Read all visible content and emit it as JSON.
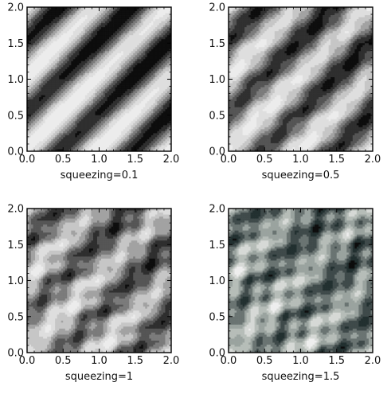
{
  "chart_data": [
    {
      "type": "heatmap",
      "title": "",
      "caption": "squeezing=0.1",
      "squeezing": 0.1,
      "xlim": [
        0.0,
        2.0
      ],
      "ylim": [
        0.0,
        2.0
      ],
      "x_ticks": [
        "0.0",
        "0.5",
        "1.0",
        "1.5",
        "2.0"
      ],
      "y_ticks": [
        "0.0",
        "0.5",
        "1.0",
        "1.5",
        "2.0"
      ],
      "grid": false,
      "legend": "none",
      "colormap": [
        "#0d0d0d",
        "#2f2f2f",
        "#555555",
        "#7b7b7b",
        "#a2a2a2",
        "#c6c6c6",
        "#dedede",
        "#ececec"
      ]
    },
    {
      "type": "heatmap",
      "title": "",
      "caption": "squeezing=0.5",
      "squeezing": 0.5,
      "xlim": [
        0.0,
        2.0
      ],
      "ylim": [
        0.0,
        2.0
      ],
      "x_ticks": [
        "0.0",
        "0.5",
        "1.0",
        "1.5",
        "2.0"
      ],
      "y_ticks": [
        "0.0",
        "0.5",
        "1.0",
        "1.5",
        "2.0"
      ],
      "grid": false,
      "legend": "none",
      "colormap": [
        "#0d0d0d",
        "#2f2f2f",
        "#555555",
        "#7b7b7b",
        "#a2a2a2",
        "#c6c6c6",
        "#dedede",
        "#ececec"
      ]
    },
    {
      "type": "heatmap",
      "title": "",
      "caption": "squeezing=1",
      "squeezing": 1,
      "xlim": [
        0.0,
        2.0
      ],
      "ylim": [
        0.0,
        2.0
      ],
      "x_ticks": [
        "0.0",
        "0.5",
        "1.0",
        "1.5",
        "2.0"
      ],
      "y_ticks": [
        "0.0",
        "0.5",
        "1.0",
        "1.5",
        "2.0"
      ],
      "grid": false,
      "legend": "none",
      "colormap": [
        "#0d0d0d",
        "#2f2f2f",
        "#555555",
        "#7b7b7b",
        "#a2a2a2",
        "#c6c6c6",
        "#dedede",
        "#ececec"
      ]
    },
    {
      "type": "heatmap",
      "title": "",
      "caption": "squeezing=1.5",
      "squeezing": 1.5,
      "xlim": [
        0.0,
        2.0
      ],
      "ylim": [
        0.0,
        2.0
      ],
      "x_ticks": [
        "0.0",
        "0.5",
        "1.0",
        "1.5",
        "2.0"
      ],
      "y_ticks": [
        "0.0",
        "0.5",
        "1.0",
        "1.5",
        "2.0"
      ],
      "grid": false,
      "legend": "none",
      "colormap": [
        "#0d0d0d",
        "#223030",
        "#3f4a4a",
        "#6a7472",
        "#9aa39f",
        "#b6bdb8",
        "#d6d9d6",
        "#eeeeee"
      ]
    }
  ]
}
